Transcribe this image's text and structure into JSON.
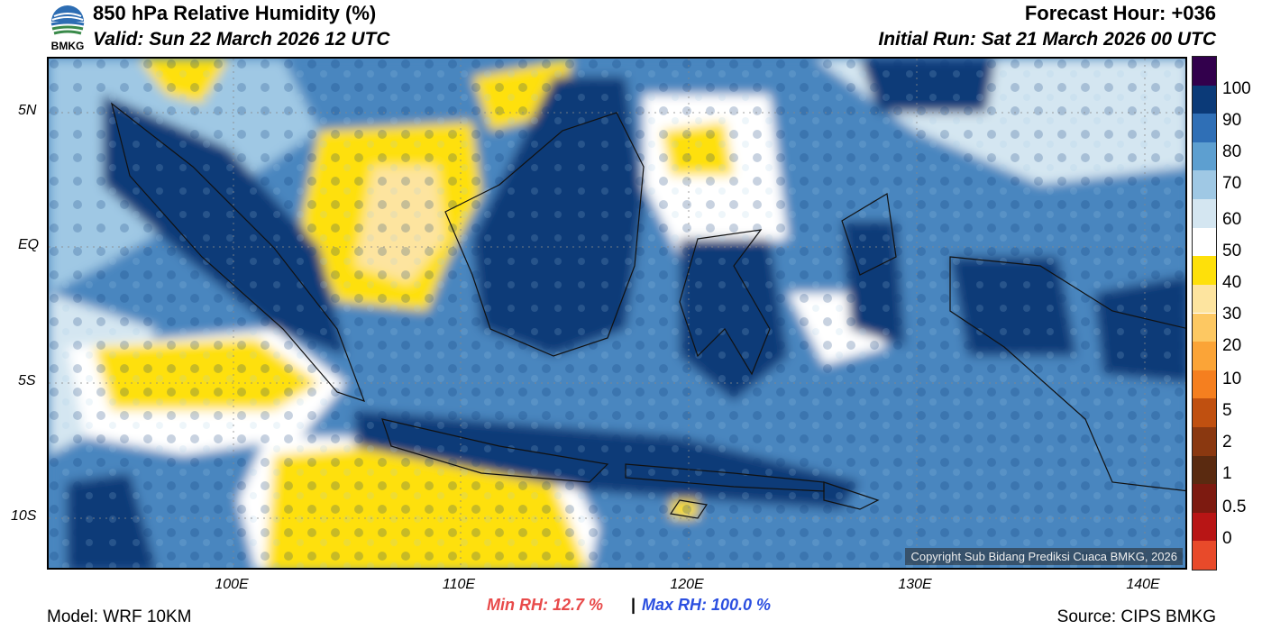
{
  "header": {
    "title": "850 hPa Relative Humidity (%)",
    "valid": "Valid: Sun 22 March 2026 12 UTC",
    "forecast_hour": "Forecast Hour: +036",
    "initial_run": "Initial Run: Sat 21 March 2026 00 UTC",
    "logo_text": "BMKG"
  },
  "map": {
    "lat_ticks": [
      "5N",
      "EQ",
      "5S",
      "10S"
    ],
    "lon_ticks": [
      "100E",
      "110E",
      "120E",
      "130E",
      "140E"
    ],
    "copyright": "Copyright Sub Bidang Prediksi Cuaca BMKG, 2026"
  },
  "colorbar": {
    "labels": [
      "100",
      "90",
      "80",
      "70",
      "60",
      "50",
      "40",
      "30",
      "20",
      "10",
      "5",
      "2",
      "1",
      "0.5",
      "0"
    ],
    "colors": [
      "#e84a2a",
      "#b81515",
      "#7d1a10",
      "#5a2a10",
      "#8a3810",
      "#c05010",
      "#f57f1f",
      "#fba437",
      "#fdc862",
      "#fde49f",
      "#fee00a",
      "#ffffff",
      "#d4e6f1",
      "#9fc8e4",
      "#5d9fd0",
      "#2f6fb6",
      "#0b3a78",
      "#32004c"
    ]
  },
  "footer": {
    "model": "Model: WRF 10KM",
    "min_rh": "Min RH:  12.7 %",
    "separator": "|",
    "max_rh": "Max RH: 100.0 %",
    "source": "Source: CIPS BMKG"
  }
}
